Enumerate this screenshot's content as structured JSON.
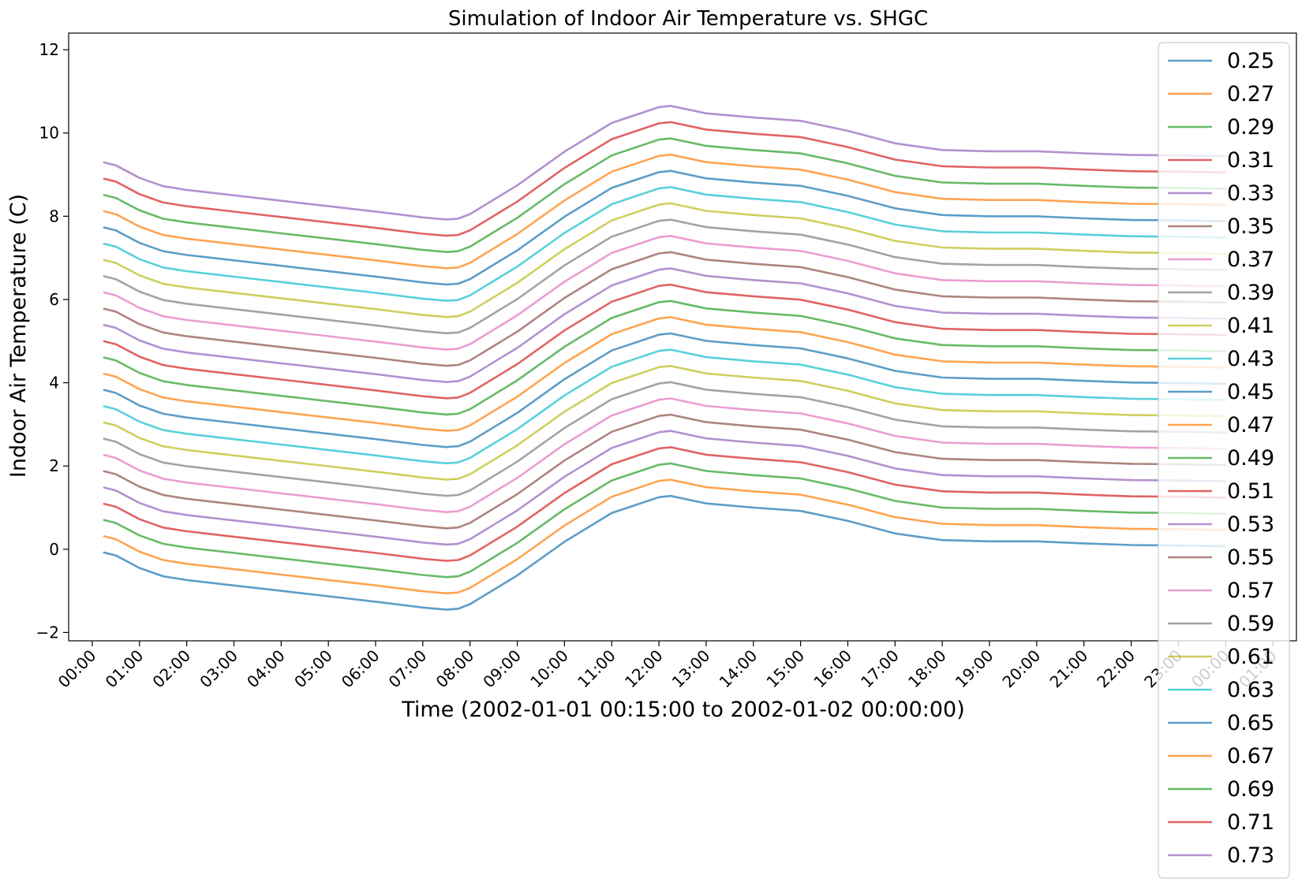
{
  "chart_data": {
    "type": "line",
    "title": "Simulation of Indoor Air Temperature vs. SHGC",
    "xlabel": "Time (2002-01-01 00:15:00 to 2002-01-02 00:00:00)",
    "ylabel": "Indoor Air Temperature (C)",
    "x_tick_labels": [
      "00:00",
      "01:00",
      "02:00",
      "03:00",
      "04:00",
      "05:00",
      "06:00",
      "07:00",
      "08:00",
      "09:00",
      "10:00",
      "11:00",
      "12:00",
      "13:00",
      "14:00",
      "15:00",
      "16:00",
      "17:00",
      "18:00",
      "19:00",
      "20:00",
      "21:00",
      "22:00",
      "23:00",
      "00:00",
      "01:00"
    ],
    "x_tick_hours": [
      0,
      1,
      2,
      3,
      4,
      5,
      6,
      7,
      8,
      9,
      10,
      11,
      12,
      13,
      14,
      15,
      16,
      17,
      18,
      19,
      20,
      21,
      22,
      23,
      24,
      25
    ],
    "y_ticks": [
      -2,
      0,
      2,
      4,
      6,
      8,
      10,
      12
    ],
    "xlim_hours": [
      -0.5,
      25.5
    ],
    "ylim": [
      -2.2,
      12.4
    ],
    "legend_position": "right",
    "grid": false,
    "x_hours": [
      0.25,
      0.5,
      1,
      1.5,
      2,
      3,
      4,
      5,
      6,
      7,
      7.5,
      7.75,
      8,
      9,
      10,
      11,
      12,
      12.25,
      13,
      14,
      15,
      16,
      17,
      18,
      19,
      20,
      21,
      22,
      23,
      24
    ],
    "base_values": [
      -0.08,
      -0.15,
      -0.45,
      -0.65,
      -0.74,
      -0.87,
      -1.0,
      -1.13,
      -1.26,
      -1.4,
      -1.45,
      -1.43,
      -1.32,
      -0.63,
      0.18,
      0.87,
      1.25,
      1.28,
      1.1,
      1.0,
      0.92,
      0.68,
      0.38,
      0.22,
      0.19,
      0.19,
      0.14,
      0.1,
      0.09,
      0.07
    ],
    "step_per_series": 0.3905,
    "series": [
      {
        "name": "0.25",
        "color": "#1f77b4"
      },
      {
        "name": "0.27",
        "color": "#ff7f0e"
      },
      {
        "name": "0.29",
        "color": "#2ca02c"
      },
      {
        "name": "0.31",
        "color": "#d62728"
      },
      {
        "name": "0.33",
        "color": "#9467bd"
      },
      {
        "name": "0.35",
        "color": "#8c564b"
      },
      {
        "name": "0.37",
        "color": "#e377c2"
      },
      {
        "name": "0.39",
        "color": "#7f7f7f"
      },
      {
        "name": "0.41",
        "color": "#bcbd22"
      },
      {
        "name": "0.43",
        "color": "#17becf"
      },
      {
        "name": "0.45",
        "color": "#1f77b4"
      },
      {
        "name": "0.47",
        "color": "#ff7f0e"
      },
      {
        "name": "0.49",
        "color": "#2ca02c"
      },
      {
        "name": "0.51",
        "color": "#d62728"
      },
      {
        "name": "0.53",
        "color": "#9467bd"
      },
      {
        "name": "0.55",
        "color": "#8c564b"
      },
      {
        "name": "0.57",
        "color": "#e377c2"
      },
      {
        "name": "0.59",
        "color": "#7f7f7f"
      },
      {
        "name": "0.61",
        "color": "#bcbd22"
      },
      {
        "name": "0.63",
        "color": "#17becf"
      },
      {
        "name": "0.65",
        "color": "#1f77b4"
      },
      {
        "name": "0.67",
        "color": "#ff7f0e"
      },
      {
        "name": "0.69",
        "color": "#2ca02c"
      },
      {
        "name": "0.71",
        "color": "#d62728"
      },
      {
        "name": "0.73",
        "color": "#9467bd"
      }
    ]
  }
}
